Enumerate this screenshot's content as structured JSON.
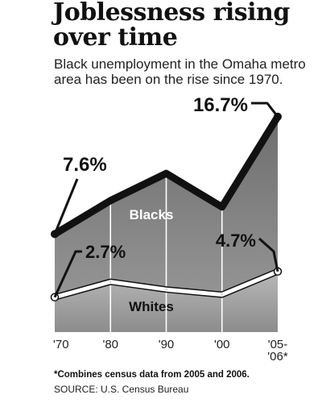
{
  "chart_data": {
    "type": "area",
    "title": "Joblessness rising over time",
    "subtitle": "Black unemployment in the Omaha metro area has been on the rise since 1970.",
    "categories": [
      "'70",
      "'80",
      "'90",
      "'00",
      "'05-'06*"
    ],
    "series": [
      {
        "name": "Blacks",
        "values": [
          7.6,
          10.2,
          12.3,
          9.7,
          16.7
        ],
        "labeled": {
          "first": "7.6%",
          "last": "16.7%"
        },
        "color": "#111111",
        "fill": "#8a8a8a"
      },
      {
        "name": "Whites",
        "values": [
          2.7,
          3.9,
          3.3,
          2.9,
          4.7
        ],
        "labeled": {
          "first": "2.7%",
          "last": "4.7%"
        },
        "color": "#ffffff",
        "fill": "#a8a8a8"
      }
    ],
    "ylim": [
      0,
      18
    ],
    "grid": "vertical lines at each category",
    "footnote": "*Combines census data from 2005 and 2006.",
    "source": "SOURCE: U.S. Census Bureau"
  }
}
